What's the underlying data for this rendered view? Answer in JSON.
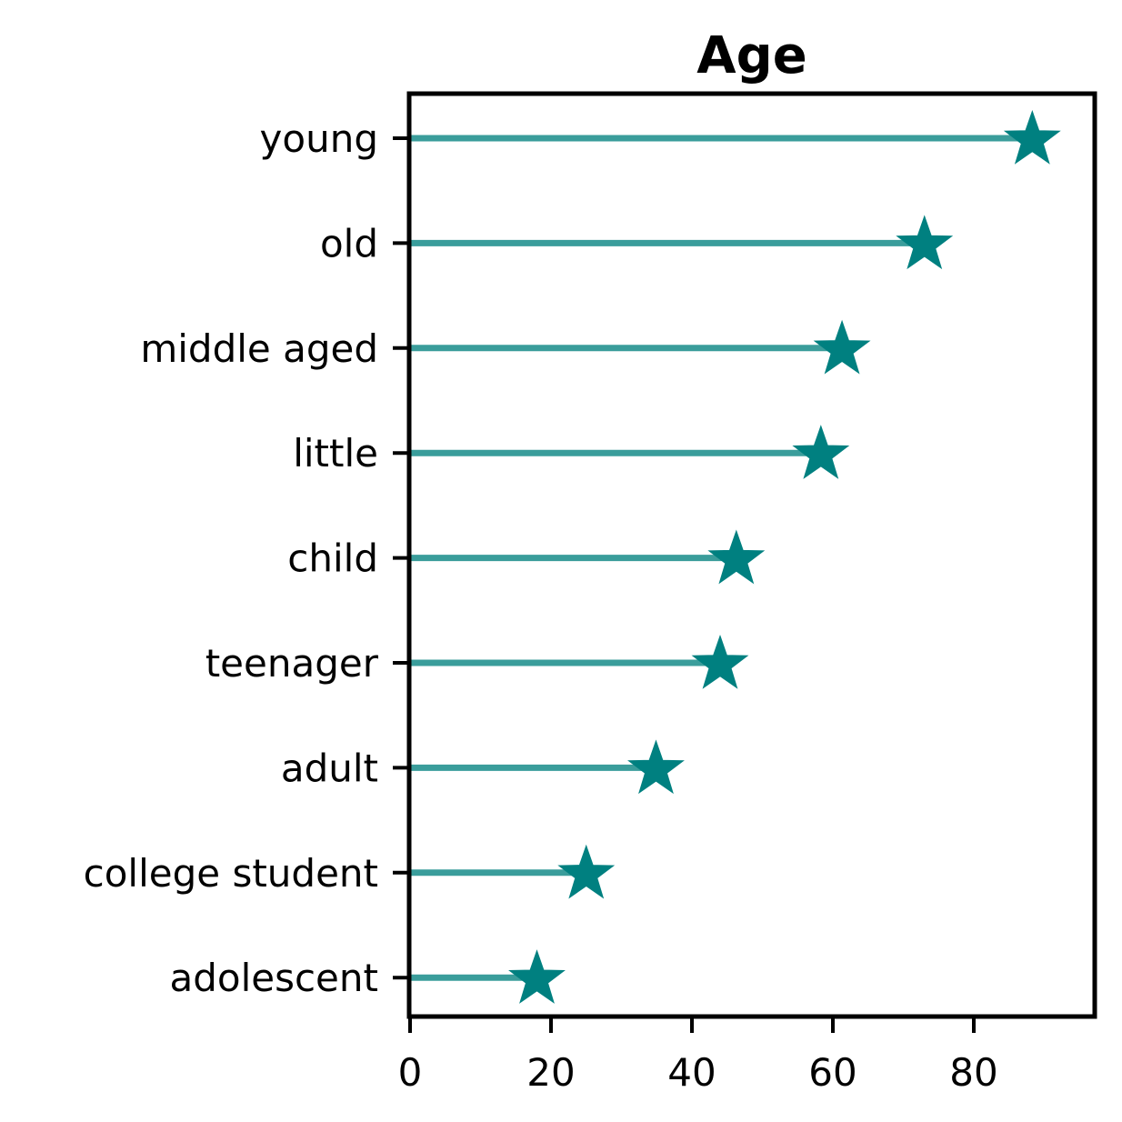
{
  "chart_data": {
    "type": "lollipop",
    "orientation": "horizontal",
    "title": "Age",
    "categories": [
      "young",
      "old",
      "middle aged",
      "little",
      "child",
      "teenager",
      "adult",
      "college student",
      "adolescent"
    ],
    "values": [
      88.3,
      73.0,
      61.3,
      58.3,
      46.3,
      44.0,
      34.9,
      25.0,
      18.0
    ],
    "xlim": [
      0,
      97.5
    ],
    "xticks": [
      "0",
      "20",
      "40",
      "60",
      "80"
    ],
    "xtick_values": [
      0,
      20,
      40,
      60,
      80
    ],
    "marker": "star",
    "line_color": "#3a9d9b",
    "marker_color": "#008080",
    "grid": false,
    "xlabel": "",
    "ylabel": ""
  }
}
